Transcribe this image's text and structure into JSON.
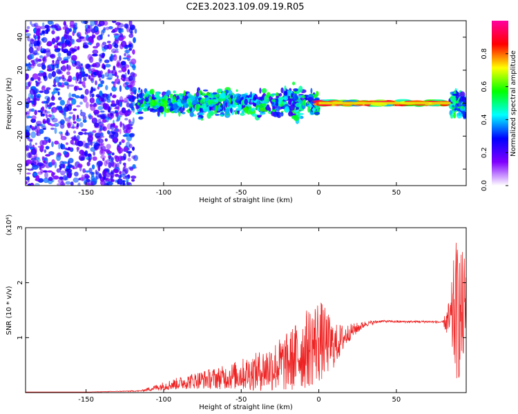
{
  "title": "C2E3.2023.109.09.19.R05",
  "chart_data": [
    {
      "type": "heatmap",
      "title": "C2E3.2023.109.09.19.R05",
      "xlabel": "Height of straight line (km)",
      "ylabel": "Frequency (Hz)",
      "xlim": [
        -189,
        95
      ],
      "ylim": [
        -50,
        50
      ],
      "xticks": [
        "-150",
        "-100",
        "-50",
        "0",
        "50"
      ],
      "yticks": [
        "40",
        "20",
        "0",
        "-20",
        "-40"
      ],
      "colorbar": {
        "label": "Normalized spectral amplitude",
        "range": [
          0,
          1
        ],
        "ticks": [
          "0.0",
          "0.2",
          "0.4",
          "0.6",
          "0.8"
        ],
        "colormap": [
          "#ffffff",
          "#8000ff",
          "#0000ff",
          "#00ffff",
          "#00ff00",
          "#ffff00",
          "#ff0000",
          "#ff00a0"
        ]
      },
      "features": [
        {
          "x_range": [
            -189,
            -118
          ],
          "freq_halfwidth": 50,
          "amplitude": 0.3,
          "description_label": ""
        },
        {
          "x_range": [
            -117,
            0
          ],
          "freq_halfwidth": 10,
          "amplitude": 0.5
        },
        {
          "x_range": [
            0,
            85
          ],
          "freq_halfwidth": 2,
          "amplitude": 0.95
        },
        {
          "x_range": [
            85,
            95
          ],
          "freq_halfwidth": 10,
          "amplitude": 0.5
        }
      ]
    },
    {
      "type": "line",
      "xlabel": "Height of straight line (km)",
      "ylabel": "SNR (10 * v/v)",
      "y_multiplier": "(x10⁴)",
      "xlim": [
        -189,
        95
      ],
      "ylim": [
        0,
        3
      ],
      "xticks": [
        "-150",
        "-100",
        "-50",
        "0",
        "50"
      ],
      "yticks": [
        "1",
        "2",
        "3"
      ],
      "color": "#ee2222",
      "series": [
        {
          "x": [
            -189,
            -150,
            -115,
            -100,
            -80,
            -60,
            -40,
            -20,
            -10,
            0,
            10,
            20,
            30,
            40,
            50,
            60,
            70,
            80,
            85,
            88,
            92,
            95
          ],
          "y": [
            0.01,
            0.01,
            0.03,
            0.12,
            0.22,
            0.28,
            0.38,
            0.55,
            0.75,
            0.95,
            0.85,
            1.1,
            1.25,
            1.3,
            1.29,
            1.29,
            1.29,
            1.28,
            1.29,
            1.5,
            1.4,
            1.6
          ],
          "noise": [
            0,
            0,
            0.01,
            0.08,
            0.15,
            0.22,
            0.35,
            0.55,
            0.7,
            0.8,
            0.4,
            0.15,
            0.05,
            0.02,
            0.02,
            0.02,
            0.02,
            0.02,
            0.5,
            1.3,
            1.2,
            0.9
          ]
        }
      ]
    }
  ]
}
